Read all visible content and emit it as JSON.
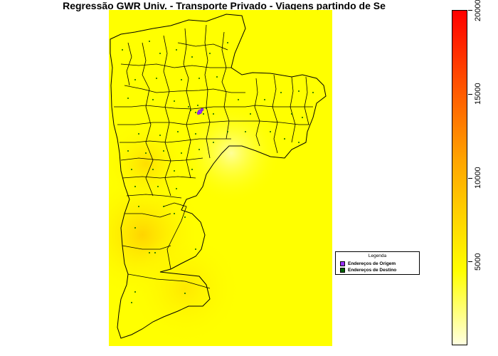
{
  "title": "Regressão GWR Univ. - Transporte Privado - Viagens partindo de Se",
  "legend": {
    "title": "Legenda",
    "items": [
      {
        "label": "Endereços de Origem",
        "color": "#9b30ff"
      },
      {
        "label": "Endereços de Destino",
        "color": "#006400"
      }
    ]
  },
  "scale": {
    "min": 0,
    "max": 20000,
    "ticks": [
      {
        "value": 5000,
        "label": "5000"
      },
      {
        "value": 10000,
        "label": "10000"
      },
      {
        "value": 15000,
        "label": "15000"
      },
      {
        "value": 20000,
        "label": "20000"
      }
    ],
    "colors": [
      "#ffffe0",
      "#ffff00",
      "#ffa500",
      "#ff0000"
    ]
  },
  "map": {
    "surface_color": "#ffff00",
    "origin_color": "#9b30ff",
    "destination_color": "#006400"
  }
}
